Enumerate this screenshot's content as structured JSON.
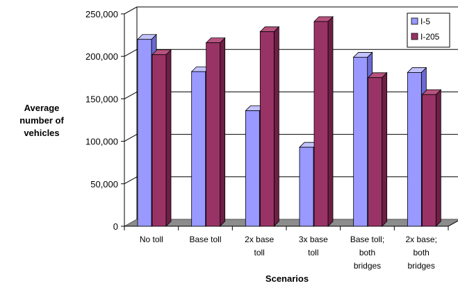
{
  "chart_data": {
    "type": "bar",
    "title": "",
    "xlabel": "Scenarios",
    "ylabel_lines": [
      "Average",
      "number of",
      "vehicles"
    ],
    "ylim": [
      0,
      250000
    ],
    "yticks": [
      0,
      50000,
      100000,
      150000,
      200000,
      250000
    ],
    "ytick_labels": [
      "0",
      "50,000",
      "100,000",
      "150,000",
      "200,000",
      "250,000"
    ],
    "categories": [
      [
        "No toll"
      ],
      [
        "Base toll"
      ],
      [
        "2x base",
        "toll"
      ],
      [
        "3x base",
        "toll"
      ],
      [
        "Base toll;",
        "both",
        "bridges"
      ],
      [
        "2x base;",
        "both",
        "bridges"
      ]
    ],
    "series": [
      {
        "name": "I-5",
        "values": [
          220000,
          182000,
          136000,
          93000,
          199000,
          181000
        ]
      },
      {
        "name": "I-205",
        "values": [
          202000,
          216000,
          229000,
          241000,
          175000,
          155000
        ]
      }
    ],
    "legend_position": "top-right",
    "grid": true
  },
  "colors": {
    "series1_front": "#9999ff",
    "series1_top": "#c3c3ff",
    "series1_side": "#6a6ad0",
    "series2_front": "#993366",
    "series2_top": "#b8527f",
    "series2_side": "#6d1f45",
    "floor": "#8c8c8c",
    "grid": "#000000"
  }
}
